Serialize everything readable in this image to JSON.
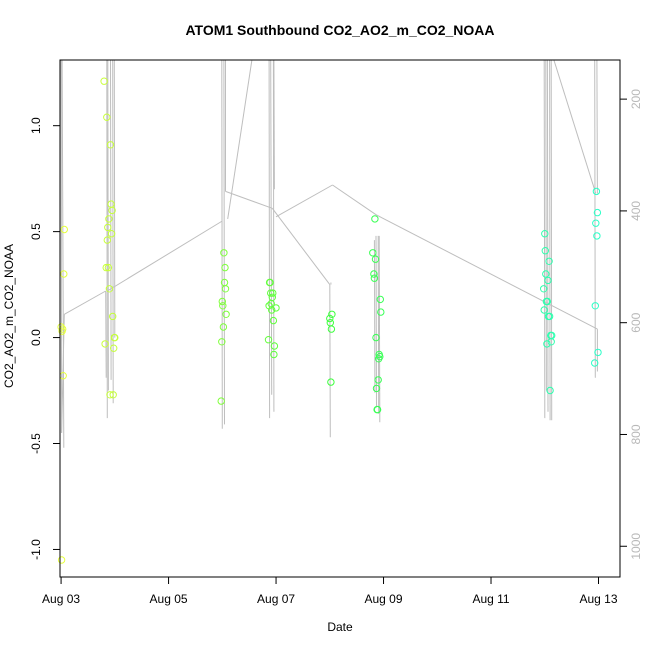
{
  "chart_data": {
    "type": "scatter",
    "title": "ATOM1 Southbound CO2_AO2_m_CO2_NOAA",
    "xlabel": "Date",
    "ylabel": "CO2_AO2_m_CO2_NOAA",
    "x_ticks": [
      {
        "day": 3,
        "label": "Aug 03"
      },
      {
        "day": 5,
        "label": "Aug 05"
      },
      {
        "day": 7,
        "label": "Aug 07"
      },
      {
        "day": 9,
        "label": "Aug 09"
      },
      {
        "day": 11,
        "label": "Aug 11"
      },
      {
        "day": 13,
        "label": "Aug 13"
      }
    ],
    "xlim": [
      2.98,
      13.4
    ],
    "ylim": [
      -1.13,
      1.31
    ],
    "y_ticks": [
      {
        "value": -1.0,
        "label": "-1.0"
      },
      {
        "value": -0.5,
        "label": "-0.5"
      },
      {
        "value": 0.0,
        "label": "0.0"
      },
      {
        "value": 0.5,
        "label": "0.5"
      },
      {
        "value": 1.0,
        "label": "1.0"
      }
    ],
    "y2_scale": "pressure (inverted)",
    "y2_ticks": [
      {
        "value": 200,
        "label": "200"
      },
      {
        "value": 400,
        "label": "400"
      },
      {
        "value": 600,
        "label": "600"
      },
      {
        "value": 800,
        "label": "800"
      },
      {
        "value": 1000,
        "label": "1000"
      }
    ],
    "y2lim": [
      1055,
      130
    ],
    "grid": false,
    "legend": "none",
    "colors": {
      "points_start": "#e6ff3c",
      "points_mid": "#3cff3c",
      "points_end": "#2bffc8",
      "profile_line": "#bebebe",
      "axis": "#000000"
    },
    "series": [
      {
        "points": [
          {
            "x": 3.0,
            "y": 0.05
          },
          {
            "x": 3.02,
            "y": 0.03
          },
          {
            "x": 3.03,
            "y": 0.04
          },
          {
            "x": 3.04,
            "y": -0.18
          },
          {
            "x": 3.05,
            "y": 0.3
          },
          {
            "x": 3.06,
            "y": 0.51
          },
          {
            "x": 3.01,
            "y": -1.05
          },
          {
            "x": 3.8,
            "y": 1.21
          },
          {
            "x": 3.82,
            "y": -0.03
          },
          {
            "x": 3.84,
            "y": 0.33
          },
          {
            "x": 3.85,
            "y": 1.04
          },
          {
            "x": 3.86,
            "y": 0.46
          },
          {
            "x": 3.87,
            "y": 0.52
          },
          {
            "x": 3.88,
            "y": 0.33
          },
          {
            "x": 3.89,
            "y": 0.56
          },
          {
            "x": 3.9,
            "y": 0.23
          },
          {
            "x": 3.91,
            "y": -0.27
          },
          {
            "x": 3.92,
            "y": 0.91
          },
          {
            "x": 3.93,
            "y": 0.63
          },
          {
            "x": 3.94,
            "y": 0.49
          },
          {
            "x": 3.95,
            "y": 0.6
          },
          {
            "x": 3.96,
            "y": 0.1
          },
          {
            "x": 3.97,
            "y": -0.27
          },
          {
            "x": 3.98,
            "y": -0.05
          },
          {
            "x": 3.99,
            "y": 0.0
          },
          {
            "x": 4.0,
            "y": 0.0
          },
          {
            "x": 5.98,
            "y": -0.3
          },
          {
            "x": 5.99,
            "y": -0.02
          },
          {
            "x": 6.0,
            "y": 0.17
          },
          {
            "x": 6.01,
            "y": 0.15
          },
          {
            "x": 6.02,
            "y": 0.05
          },
          {
            "x": 6.03,
            "y": 0.4
          },
          {
            "x": 6.04,
            "y": 0.26
          },
          {
            "x": 6.05,
            "y": 0.33
          },
          {
            "x": 6.06,
            "y": 0.23
          },
          {
            "x": 6.07,
            "y": 0.11
          },
          {
            "x": 6.86,
            "y": -0.01
          },
          {
            "x": 6.87,
            "y": 0.15
          },
          {
            "x": 6.88,
            "y": 0.26
          },
          {
            "x": 6.89,
            "y": 0.26
          },
          {
            "x": 6.9,
            "y": 0.21
          },
          {
            "x": 6.91,
            "y": 0.16
          },
          {
            "x": 6.92,
            "y": 0.13
          },
          {
            "x": 6.93,
            "y": 0.19
          },
          {
            "x": 6.94,
            "y": 0.21
          },
          {
            "x": 6.95,
            "y": 0.08
          },
          {
            "x": 6.96,
            "y": -0.08
          },
          {
            "x": 6.97,
            "y": -0.04
          },
          {
            "x": 7.0,
            "y": 0.14
          },
          {
            "x": 8.0,
            "y": 0.09
          },
          {
            "x": 8.01,
            "y": 0.07
          },
          {
            "x": 8.02,
            "y": -0.21
          },
          {
            "x": 8.03,
            "y": 0.04
          },
          {
            "x": 8.04,
            "y": 0.11
          },
          {
            "x": 8.8,
            "y": 0.4
          },
          {
            "x": 8.82,
            "y": 0.3
          },
          {
            "x": 8.83,
            "y": 0.28
          },
          {
            "x": 8.84,
            "y": 0.56
          },
          {
            "x": 8.85,
            "y": 0.37
          },
          {
            "x": 8.86,
            "y": 0.0
          },
          {
            "x": 8.87,
            "y": -0.24
          },
          {
            "x": 8.88,
            "y": -0.34
          },
          {
            "x": 8.89,
            "y": -0.34
          },
          {
            "x": 8.9,
            "y": -0.2
          },
          {
            "x": 8.91,
            "y": -0.1
          },
          {
            "x": 8.92,
            "y": -0.08
          },
          {
            "x": 8.93,
            "y": -0.09
          },
          {
            "x": 8.94,
            "y": 0.18
          },
          {
            "x": 8.95,
            "y": 0.12
          },
          {
            "x": 11.98,
            "y": 0.23
          },
          {
            "x": 11.99,
            "y": 0.13
          },
          {
            "x": 12.0,
            "y": 0.49
          },
          {
            "x": 12.01,
            "y": 0.41
          },
          {
            "x": 12.02,
            "y": 0.3
          },
          {
            "x": 12.03,
            "y": 0.17
          },
          {
            "x": 12.04,
            "y": -0.03
          },
          {
            "x": 12.05,
            "y": 0.17
          },
          {
            "x": 12.06,
            "y": 0.27
          },
          {
            "x": 12.07,
            "y": 0.1
          },
          {
            "x": 12.08,
            "y": 0.36
          },
          {
            "x": 12.09,
            "y": 0.1
          },
          {
            "x": 12.1,
            "y": -0.25
          },
          {
            "x": 12.11,
            "y": 0.01
          },
          {
            "x": 12.12,
            "y": -0.02
          },
          {
            "x": 12.13,
            "y": 0.01
          },
          {
            "x": 12.93,
            "y": -0.12
          },
          {
            "x": 12.94,
            "y": 0.15
          },
          {
            "x": 12.95,
            "y": 0.54
          },
          {
            "x": 12.96,
            "y": 0.69
          },
          {
            "x": 12.97,
            "y": 0.48
          },
          {
            "x": 12.98,
            "y": 0.59
          },
          {
            "x": 12.99,
            "y": -0.07
          }
        ]
      }
    ],
    "profile_segments": [
      [
        [
          3.0,
          1.31
        ],
        [
          3.01,
          -0.45
        ]
      ],
      [
        [
          3.02,
          1.31
        ],
        [
          3.05,
          -0.52
        ]
      ],
      [
        [
          3.01,
          -0.45
        ],
        [
          3.06,
          0.11
        ]
      ],
      [
        [
          3.06,
          0.11
        ],
        [
          3.83,
          0.22
        ]
      ],
      [
        [
          3.83,
          0.22
        ],
        [
          3.84,
          -0.19
        ]
      ],
      [
        [
          3.85,
          1.31
        ],
        [
          3.86,
          -0.38
        ]
      ],
      [
        [
          3.87,
          1.31
        ],
        [
          3.88,
          -0.25
        ]
      ],
      [
        [
          3.92,
          1.31
        ],
        [
          3.93,
          -0.2
        ]
      ],
      [
        [
          3.96,
          1.31
        ],
        [
          3.97,
          -0.31
        ]
      ],
      [
        [
          3.99,
          1.31
        ],
        [
          4.0,
          0.0
        ]
      ],
      [
        [
          3.86,
          0.22
        ],
        [
          6.0,
          0.55
        ]
      ],
      [
        [
          5.99,
          1.31
        ],
        [
          6.0,
          -0.43
        ]
      ],
      [
        [
          6.03,
          1.31
        ],
        [
          6.04,
          -0.41
        ]
      ],
      [
        [
          6.06,
          1.31
        ],
        [
          6.06,
          0.69
        ]
      ],
      [
        [
          6.06,
          0.69
        ],
        [
          6.93,
          0.61
        ]
      ],
      [
        [
          6.1,
          0.56
        ],
        [
          6.55,
          1.31
        ]
      ],
      [
        [
          6.87,
          1.31
        ],
        [
          6.88,
          -0.38
        ]
      ],
      [
        [
          6.9,
          1.31
        ],
        [
          6.92,
          -0.27
        ]
      ],
      [
        [
          6.95,
          1.31
        ],
        [
          6.96,
          -0.35
        ]
      ],
      [
        [
          6.96,
          1.31
        ],
        [
          6.97,
          0.7
        ]
      ],
      [
        [
          6.93,
          0.61
        ],
        [
          8.0,
          0.25
        ]
      ],
      [
        [
          7.0,
          0.57
        ],
        [
          8.05,
          0.72
        ]
      ],
      [
        [
          8.0,
          0.25
        ],
        [
          8.01,
          -0.47
        ]
      ],
      [
        [
          8.02,
          0.25
        ],
        [
          8.02,
          0.26
        ]
      ],
      [
        [
          8.05,
          0.72
        ],
        [
          8.86,
          0.58
        ]
      ],
      [
        [
          8.86,
          0.58
        ],
        [
          12.98,
          0.04
        ]
      ],
      [
        [
          8.83,
          0.46
        ],
        [
          8.84,
          -0.26
        ]
      ],
      [
        [
          8.86,
          0.48
        ],
        [
          8.87,
          -0.33
        ]
      ],
      [
        [
          8.9,
          0.48
        ],
        [
          8.91,
          -0.36
        ]
      ],
      [
        [
          8.92,
          0.48
        ],
        [
          8.93,
          -0.4
        ]
      ],
      [
        [
          11.99,
          1.31
        ],
        [
          12.0,
          -0.38
        ]
      ],
      [
        [
          12.02,
          1.31
        ],
        [
          12.03,
          -0.25
        ]
      ],
      [
        [
          12.05,
          1.31
        ],
        [
          12.06,
          -0.35
        ]
      ],
      [
        [
          12.09,
          1.31
        ],
        [
          12.1,
          -0.39
        ]
      ],
      [
        [
          12.12,
          1.31
        ],
        [
          12.13,
          -0.39
        ]
      ],
      [
        [
          12.17,
          1.31
        ],
        [
          12.95,
          0.68
        ]
      ],
      [
        [
          12.93,
          1.31
        ],
        [
          12.94,
          -0.19
        ]
      ],
      [
        [
          12.98,
          0.04
        ],
        [
          12.98,
          -0.16
        ]
      ],
      [
        [
          12.97,
          1.31
        ],
        [
          12.98,
          0.68
        ]
      ]
    ]
  }
}
